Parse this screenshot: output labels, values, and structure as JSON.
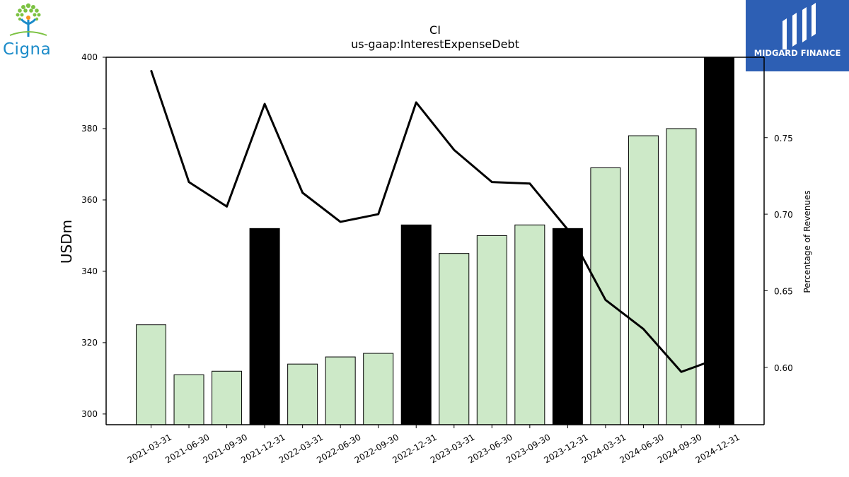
{
  "header": {
    "brand_left": "Cigna",
    "brand_right": "MIDGARD FINANCE"
  },
  "chart_data": {
    "type": "bar",
    "title": "CI",
    "subtitle": "us-gaap:InterestExpenseDebt",
    "ylabel": "USDm",
    "ylabel_right": "Percentage of Revenues",
    "ylim": [
      297,
      400
    ],
    "ylim_right": [
      0.5625,
      0.8025
    ],
    "yticks": [
      300,
      320,
      340,
      360,
      380,
      400
    ],
    "yticks_right": [
      "0.60",
      "0.65",
      "0.70",
      "0.75"
    ],
    "categories": [
      "2021-03-31",
      "2021-06-30",
      "2021-09-30",
      "2021-12-31",
      "2022-03-31",
      "2022-06-30",
      "2022-09-30",
      "2022-12-31",
      "2023-03-31",
      "2023-06-30",
      "2023-09-30",
      "2023-12-31",
      "2024-03-31",
      "2024-06-30",
      "2024-09-30",
      "2024-12-31"
    ],
    "series": [
      {
        "type": "bar",
        "values": [
          325,
          311,
          312,
          352,
          314,
          316,
          317,
          353,
          345,
          350,
          353,
          352,
          369,
          378,
          380,
          400
        ],
        "highlight": [
          false,
          false,
          false,
          true,
          false,
          false,
          false,
          true,
          false,
          false,
          false,
          true,
          false,
          false,
          false,
          true
        ],
        "color": "#cde9c8",
        "highlight_color": "#000000"
      },
      {
        "type": "line",
        "axis": "right",
        "values": [
          0.794,
          0.721,
          0.705,
          0.772,
          0.714,
          0.695,
          0.7,
          0.773,
          0.742,
          0.721,
          0.72,
          0.69,
          0.644,
          0.625,
          0.597,
          0.606
        ],
        "color": "#000000"
      }
    ],
    "grid": false,
    "legend": "none"
  }
}
